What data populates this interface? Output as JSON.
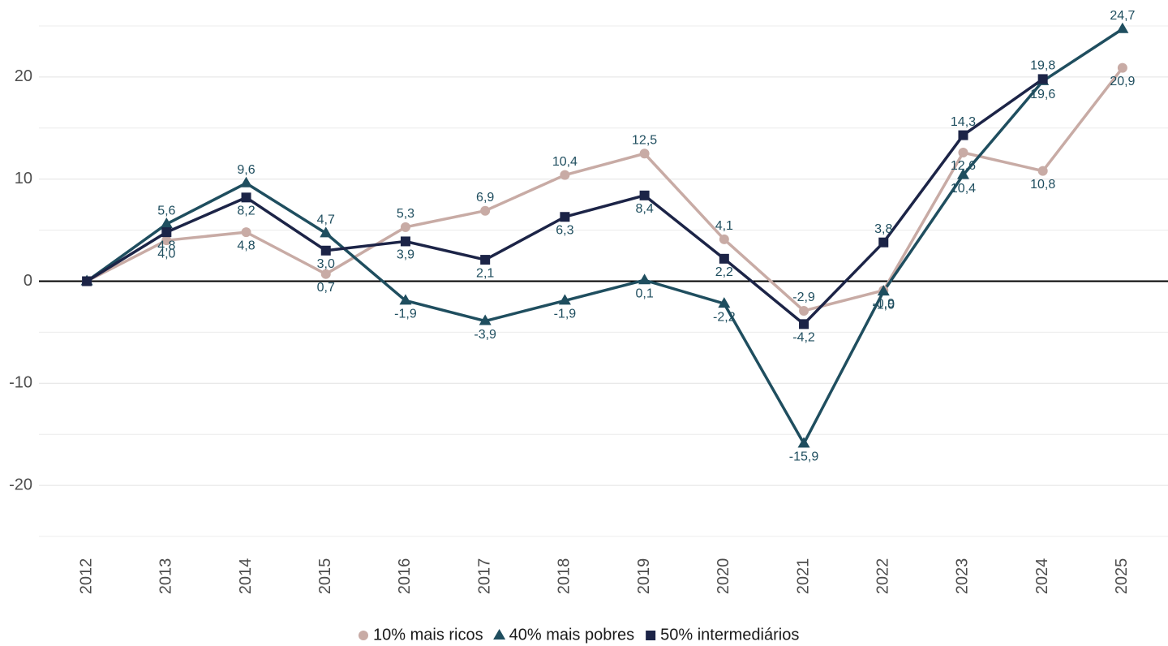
{
  "chart_data": {
    "type": "line",
    "categories": [
      "2012",
      "2013",
      "2014",
      "2015",
      "2016",
      "2017",
      "2018",
      "2019",
      "2020",
      "2021",
      "2022",
      "2023",
      "2024",
      "2025"
    ],
    "ylim": [
      -25,
      25
    ],
    "yticks": [
      -20,
      -10,
      0,
      10,
      20
    ],
    "minor_yticks": [
      -25,
      -15,
      -5,
      5,
      15,
      25
    ],
    "grid": true,
    "legend": "bottom",
    "series": [
      {
        "name": "10% mais ricos",
        "color": "#c8aba5",
        "marker": "circle",
        "values": [
          0,
          4.0,
          4.8,
          0.7,
          5.3,
          6.9,
          10.4,
          12.5,
          4.1,
          -2.9,
          -0.9,
          12.6,
          10.8,
          20.9
        ],
        "value_labels": [
          null,
          "4,0",
          "4,8",
          "0,7",
          "5,3",
          "6,9",
          "10,4",
          "12,5",
          "4,1",
          "-2,9",
          "-0,9",
          "12,6",
          "10,8",
          "20,9"
        ]
      },
      {
        "name": "40% mais pobres",
        "color": "#1f4e5f",
        "marker": "triangle",
        "values": [
          0,
          5.6,
          9.6,
          4.7,
          -1.9,
          -3.9,
          -1.9,
          0.1,
          -2.2,
          -15.9,
          -1.0,
          10.4,
          19.6,
          24.7
        ],
        "value_labels": [
          null,
          "5,6",
          "9,6",
          "4,7",
          "-1,9",
          "-3,9",
          "-1,9",
          "0,1",
          "-2,2",
          "-15,9",
          "-1,0",
          "10,4",
          "19,6",
          "24,7"
        ]
      },
      {
        "name": "50% intermediários",
        "color": "#1c2447",
        "marker": "square",
        "values": [
          0,
          4.8,
          8.2,
          3.0,
          3.9,
          2.1,
          6.3,
          8.4,
          2.2,
          -4.2,
          3.8,
          14.3,
          19.8,
          null
        ],
        "value_labels": [
          null,
          "4,8",
          "8,2",
          "3,0",
          "3,9",
          "2,1",
          "6,3",
          "8,4",
          "2,2",
          "-4,2",
          "3,8",
          "14,3",
          "19,8",
          null
        ]
      }
    ]
  }
}
